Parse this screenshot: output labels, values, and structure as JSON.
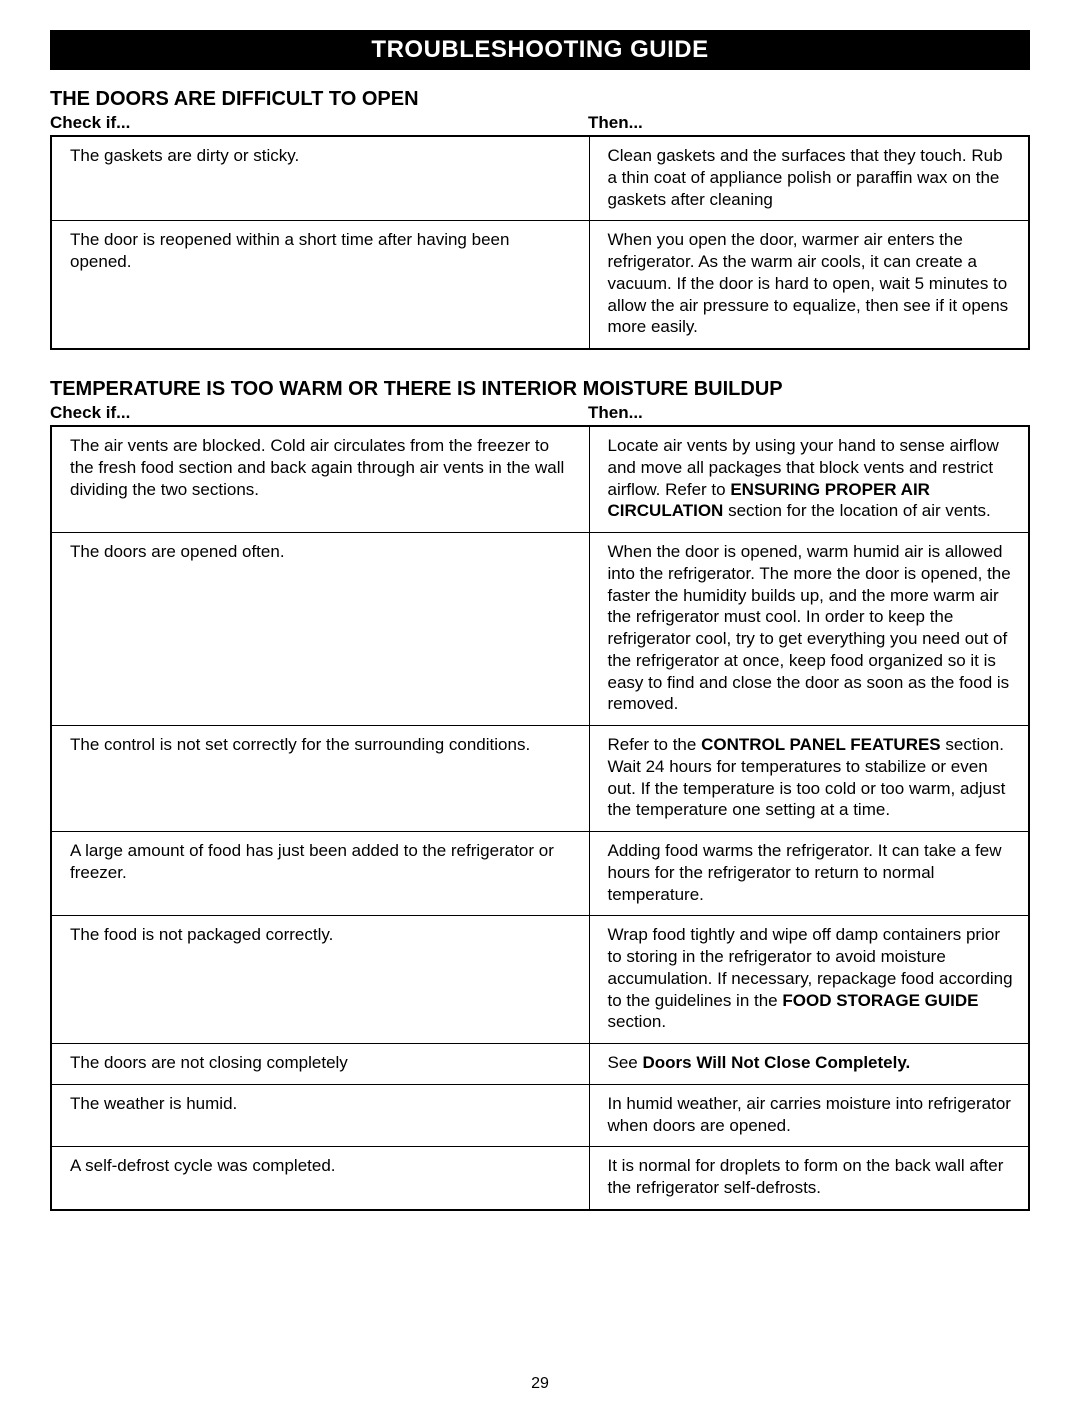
{
  "banner": "TROUBLESHOOTING GUIDE",
  "page_number": "29",
  "sections": [
    {
      "heading": "THE DOORS ARE DIFFICULT TO OPEN",
      "check_label": "Check if...",
      "then_label": "Then...",
      "rows": [
        {
          "check": "The gaskets are dirty or sticky.",
          "then": "Clean gaskets and the surfaces that they touch. Rub a thin coat of appliance polish or paraffin wax on the gaskets after cleaning"
        },
        {
          "check": "The door is reopened within a short time after having been opened.",
          "then": "When you open the door, warmer air enters the refrigerator. As the warm air cools, it can create a vacuum. If the door is hard to open, wait 5 minutes to allow the air pressure to equalize, then see if it opens more easily."
        }
      ]
    },
    {
      "heading": "TEMPERATURE IS TOO WARM OR THERE IS INTERIOR MOISTURE BUILDUP",
      "check_label": "Check if...",
      "then_label": "Then...",
      "rows": [
        {
          "check": "The air vents are blocked. Cold air circulates from the freezer to the fresh food section and back again through air vents in the wall dividing the two sections.",
          "then_html": "Locate air vents by using your hand to sense airflow and move all packages that block vents and restrict airflow. Refer to <b>ENSURING PROPER AIR CIRCULATION</b> section for the location of air vents."
        },
        {
          "check": "The doors are opened often.",
          "then": "When the door is opened, warm humid air is allowed into the refrigerator. The more the door is opened, the faster the humidity builds up, and the more warm air the refrigerator must cool. In order to keep the refrigerator cool, try to get everything you need out of the refrigerator at once, keep  food organized so it is easy to find and close the door as soon as the food is removed."
        },
        {
          "check": "The control is not set correctly for the surrounding conditions.",
          "then_html": "Refer to the <b>CONTROL PANEL FEATURES</b> section. Wait 24 hours for temperatures to stabilize or even out. If the temperature is too cold or too warm, adjust the temperature one setting at a time."
        },
        {
          "check": "A large amount of food has just been added to the refrigerator or freezer.",
          "then": "Adding food warms the refrigerator. It can take a few hours for the refrigerator to return to normal temperature."
        },
        {
          "check": "The food is not packaged correctly.",
          "then_html": "Wrap food tightly and wipe off damp containers prior to storing in the refrigerator to avoid moisture accumulation. If necessary, repackage food according to the guidelines in the <b>FOOD STORAGE GUIDE</b> section."
        },
        {
          "check": "The doors are not closing completely",
          "then_html": "See <b>Doors Will Not Close Completely.</b>"
        },
        {
          "check": "The weather is humid.",
          "then": "In humid weather, air carries moisture into refrigerator when doors are opened."
        },
        {
          "check": "A self-defrost cycle was completed.",
          "then": "It is normal for droplets to form on the back wall after the refrigerator self-defrosts."
        }
      ]
    }
  ]
}
